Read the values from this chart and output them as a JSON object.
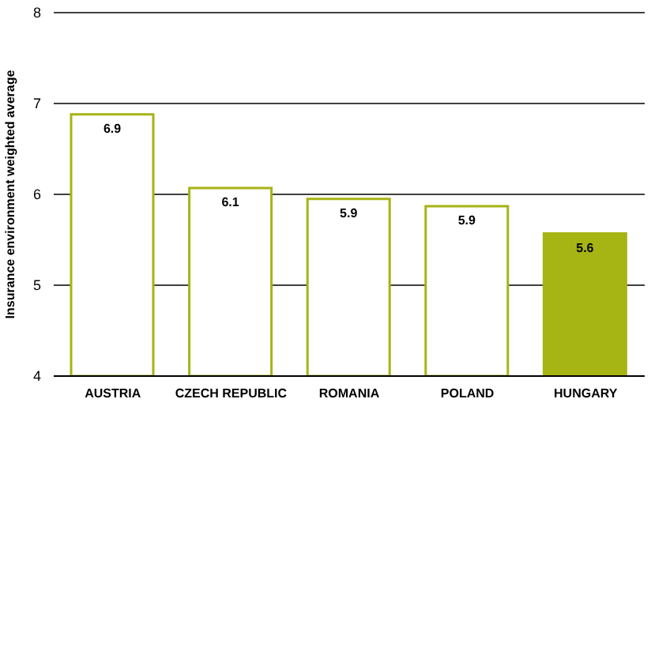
{
  "chart_data": {
    "type": "bar",
    "ylabel": "Insurance environment weighted average",
    "categories": [
      "AUSTRIA",
      "CZECH REPUBLIC",
      "ROMANIA",
      "POLAND",
      "HUNGARY"
    ],
    "values": [
      6.88,
      6.07,
      5.95,
      5.87,
      5.57
    ],
    "value_labels": [
      "6.9",
      "6.1",
      "5.9",
      "5.9",
      "5.6"
    ],
    "color": "#a6b414",
    "colors": [
      "#ffffff",
      "#ffffff",
      "#ffffff",
      "#ffffff",
      "#a6b414"
    ],
    "ylim": [
      4,
      8
    ],
    "yticks": [
      4,
      5,
      6,
      7,
      8
    ],
    "grid": "y"
  }
}
